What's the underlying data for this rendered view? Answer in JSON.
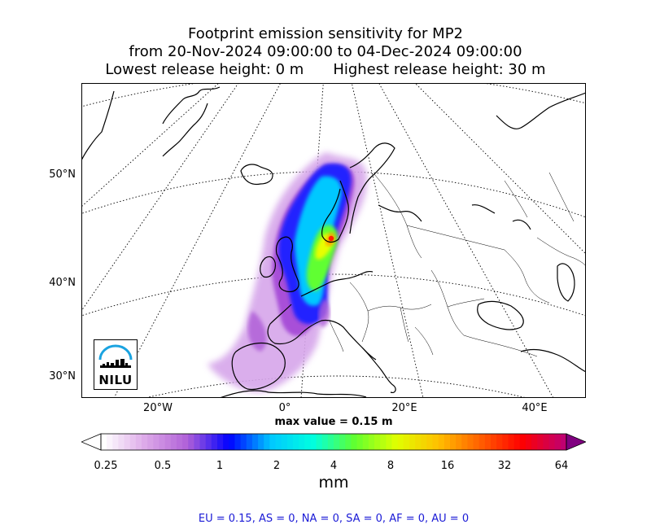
{
  "title": {
    "line1": "Footprint emission sensitivity for MP2",
    "line2": "from 20-Nov-2024 09:00:00 to 04-Dec-2024 09:00:00",
    "line3_left": "Lowest release height: 0 m",
    "line3_right": "Highest release height: 30 m"
  },
  "map": {
    "lat_labels": [
      "50°N",
      "40°N",
      "30°N"
    ],
    "lon_labels": [
      "20°W",
      "0°",
      "20°E",
      "40°E"
    ],
    "max_value_text": "max value = 0.15 m",
    "logo_text": "NILU"
  },
  "colorbar": {
    "ticks": [
      "0.25",
      "0.5",
      "1",
      "2",
      "4",
      "8",
      "16",
      "32",
      "64"
    ],
    "unit": "mm",
    "colors": [
      "#ffffff",
      "#dca8e8",
      "#b060d8",
      "#0000ff",
      "#00c8ff",
      "#00ffe0",
      "#60ff30",
      "#e0ff00",
      "#ffc000",
      "#ff6000",
      "#ff0000",
      "#c00070",
      "#800080"
    ]
  },
  "summary": "EU = 0.15,  AS = 0,  NA = 0,  SA = 0,  AF = 0,  AU = 0"
}
